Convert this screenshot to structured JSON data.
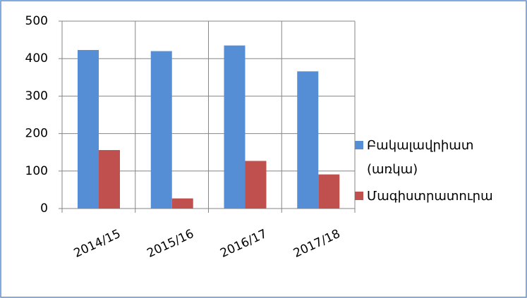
{
  "chart_data": {
    "type": "bar",
    "categories": [
      "2014/15",
      "2015/16",
      "2016/17",
      "2017/18"
    ],
    "series": [
      {
        "name": "Բակալավրիատ (առկա)",
        "color": "#558ed5",
        "values": [
          423,
          420,
          435,
          366
        ]
      },
      {
        "name": "Մագիստրատուրա",
        "color": "#c0504d",
        "values": [
          156,
          27,
          127,
          91
        ]
      }
    ],
    "ylim": [
      0,
      500
    ],
    "yticks": [
      0,
      100,
      200,
      300,
      400,
      500
    ],
    "grid": true,
    "legend": "right"
  }
}
